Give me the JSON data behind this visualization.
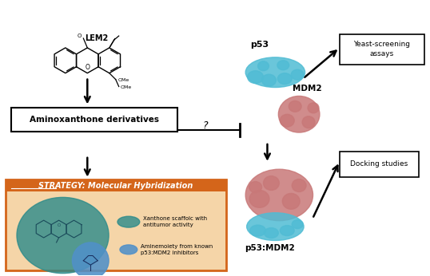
{
  "bg_color": "#ffffff",
  "lem2_label": "LEM2",
  "aminox_box_text": "Aminoxanthone derivatives",
  "strategy_title": "STRATEGY: Molecular Hybridization",
  "strategy_bg": "#f5d5a8",
  "strategy_border": "#d4651a",
  "xanthone_legend_text": "Xanthone scaffolc with\nantitumor activity",
  "amine_legend_text": "Aminemoiety from known\np53:MDM2 inhibitors",
  "p53_label": "p53",
  "mdm2_label": "MDM2",
  "complex_label": "p53:MDM2",
  "yeast_box_text": "Yeast-screening\nassays",
  "docking_box_text": "Docking studies",
  "question_mark": "?",
  "teal_color": "#2a8a8a",
  "blue_color": "#5090c8",
  "light_blue_color": "#50bcd4",
  "salmon_color": "#c87878",
  "dark_salmon": "#b06060"
}
